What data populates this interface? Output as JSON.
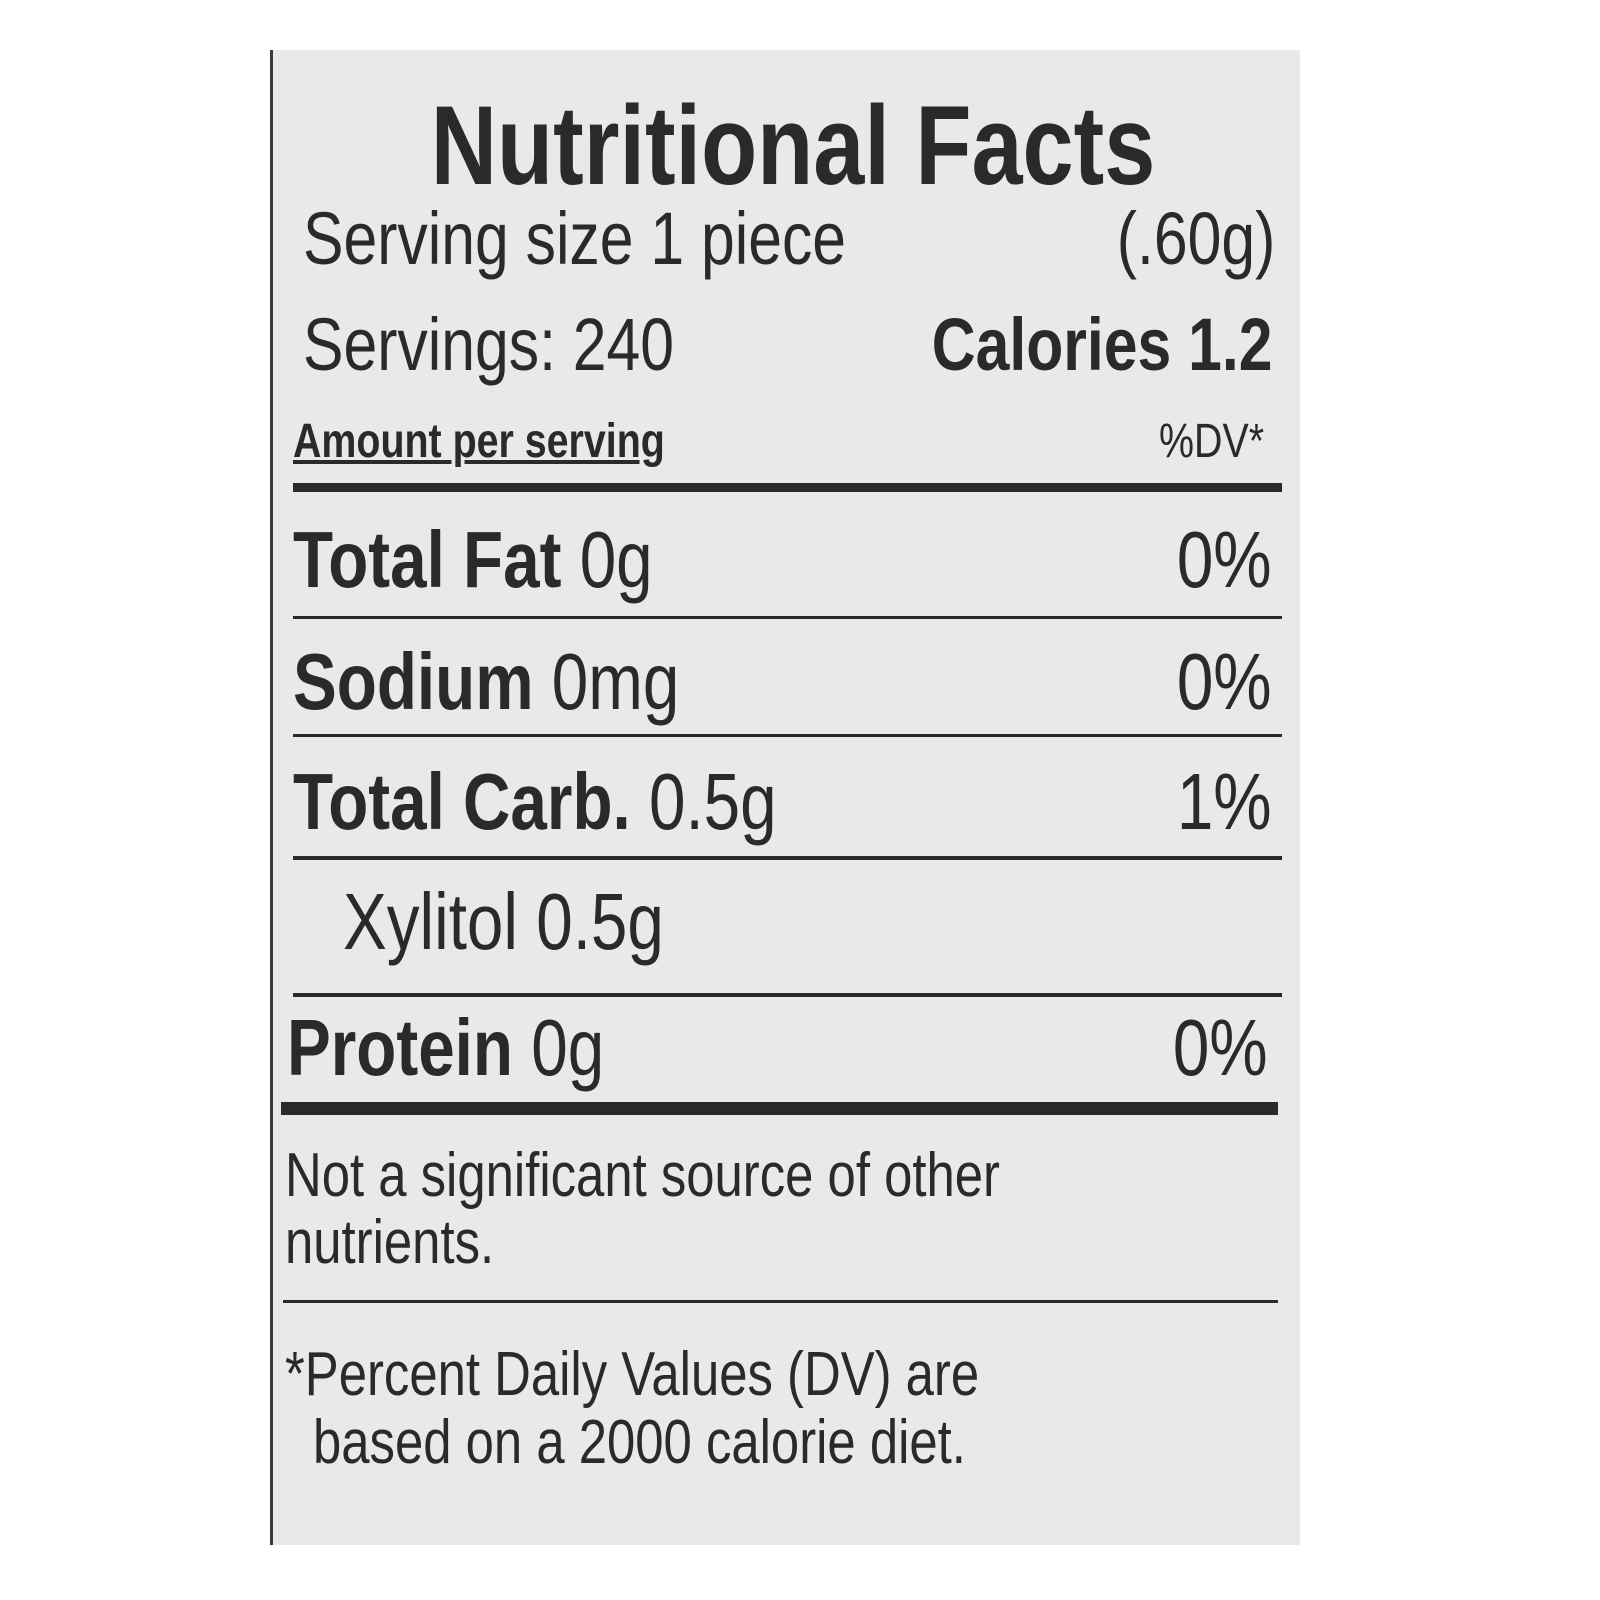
{
  "title": "Nutritional Facts",
  "serving_size": {
    "label": "Serving size 1 piece",
    "weight": "(.60g)"
  },
  "servings": "Servings: 240",
  "calories": "Calories 1.2",
  "header": {
    "amount": "Amount per serving",
    "dv": "%DV*"
  },
  "rows": [
    {
      "label": "Total Fat",
      "amount": "0g",
      "dv": "0%"
    },
    {
      "label": "Sodium",
      "amount": "0mg",
      "dv": "0%"
    },
    {
      "label": "Total Carb.",
      "amount": "0.5g",
      "dv": "1%"
    },
    {
      "label": "Xylitol 0.5g"
    },
    {
      "label": "Protein",
      "amount": "0g",
      "dv": "0%"
    }
  ],
  "note": [
    "Not a significant source of other",
    "nutrients."
  ],
  "footnote": [
    "*Percent Daily Values (DV) are",
    "based on a 2000 calorie diet."
  ]
}
